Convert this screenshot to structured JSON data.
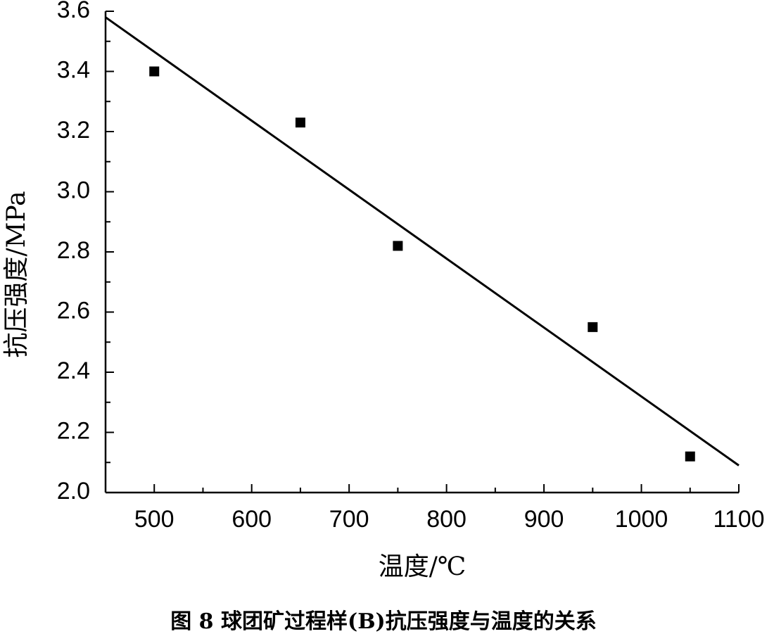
{
  "chart_data": {
    "type": "scatter",
    "xlabel": "温度/℃",
    "ylabel": "抗压强度/MPa",
    "caption": "图 8 球团矿过程样(B)抗压强度与温度的关系",
    "x": [
      500,
      650,
      750,
      950,
      1050
    ],
    "values": [
      3.4,
      3.23,
      2.82,
      2.55,
      2.12
    ],
    "color": "#000000",
    "fit_line": {
      "x": [
        450,
        1100
      ],
      "values": [
        3.58,
        2.09
      ]
    },
    "xlim": [
      450,
      1100
    ],
    "ylim": [
      2.0,
      3.6
    ],
    "xticks": [
      500,
      600,
      700,
      800,
      900,
      1000,
      1100
    ],
    "yticks": [
      {
        "value": 2.0,
        "label": "2.0"
      },
      2.2,
      2.4,
      2.6,
      2.8,
      {
        "value": 3.0,
        "label": "3.0"
      },
      3.2,
      3.4,
      3.6
    ],
    "xminorticks": [
      450,
      550,
      650,
      750,
      850,
      950,
      1050
    ],
    "yminorticks": [
      2.1,
      2.3,
      2.5,
      2.7,
      2.9,
      3.1,
      3.3,
      3.5
    ]
  }
}
